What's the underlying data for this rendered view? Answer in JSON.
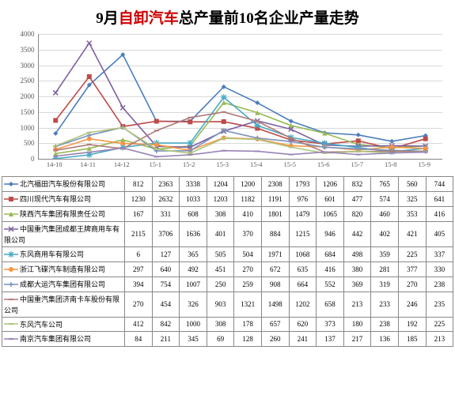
{
  "title_parts": {
    "prefix": "9月",
    "red": "自卸汽车",
    "suffix": "总产量前10名企业产量走势"
  },
  "chart": {
    "type": "line",
    "ylim": [
      0,
      4000
    ],
    "ytick_step": 500,
    "yticks": [
      0,
      500,
      1000,
      1500,
      2000,
      2500,
      3000,
      3500,
      4000
    ],
    "categories": [
      "14-10",
      "14-11",
      "14-12",
      "15-1",
      "15-2",
      "15-3",
      "15-4",
      "15-5",
      "15-6",
      "15-7",
      "15-8",
      "15-9"
    ],
    "grid_color": "#d9d9d9",
    "axis_color": "#868686",
    "background_color": "#ffffff"
  },
  "series": [
    {
      "name": "北汽福田汽车股份有限公司",
      "color": "#4a7ebb",
      "marker": "diamond",
      "values": [
        812,
        2363,
        3338,
        1204,
        1200,
        2308,
        1793,
        1206,
        832,
        765,
        560,
        744
      ]
    },
    {
      "name": "四川现代汽车有限公司",
      "color": "#be4b48",
      "marker": "square",
      "values": [
        1230,
        2632,
        1033,
        1203,
        1182,
        1191,
        976,
        601,
        477,
        574,
        325,
        641
      ]
    },
    {
      "name": "陕西汽车集团有限责任公司",
      "color": "#98b954",
      "marker": "triangle",
      "values": [
        167,
        331,
        608,
        308,
        410,
        1801,
        1479,
        1065,
        820,
        460,
        353,
        416
      ]
    },
    {
      "name": "中国重汽集团成都王牌商用车有限公司",
      "color": "#7d60a0",
      "marker": "x",
      "values": [
        2115,
        3706,
        1636,
        401,
        370,
        884,
        1215,
        946,
        442,
        402,
        421,
        405
      ]
    },
    {
      "name": "东风商用车有限公司",
      "color": "#46aac5",
      "marker": "star",
      "values": [
        6,
        127,
        365,
        505,
        504,
        1971,
        1068,
        684,
        498,
        359,
        225,
        337
      ]
    },
    {
      "name": "浙江飞碟汽车制造有限公司",
      "color": "#f79646",
      "marker": "circle",
      "values": [
        297,
        640,
        492,
        451,
        270,
        672,
        635,
        416,
        380,
        281,
        377,
        330
      ]
    },
    {
      "name": "成都大运汽车集团有限公司",
      "color": "#7993be",
      "marker": "plus",
      "values": [
        394,
        754,
        1007,
        250,
        259,
        908,
        664,
        552,
        369,
        319,
        270,
        238
      ]
    },
    {
      "name": "中国重汽集团济南卡车股份有限公司",
      "color": "#b07a78",
      "marker": "dash",
      "values": [
        270,
        454,
        326,
        903,
        1321,
        1498,
        1202,
        658,
        213,
        233,
        246,
        235
      ]
    },
    {
      "name": "东风汽车公司",
      "color": "#aec47b",
      "marker": "dash",
      "values": [
        412,
        842,
        1000,
        308,
        178,
        657,
        620,
        373,
        180,
        238,
        192,
        225
      ]
    },
    {
      "name": "南京汽车集团有限公司",
      "color": "#9983b5",
      "marker": "dash",
      "values": [
        84,
        211,
        345,
        69,
        128,
        260,
        241,
        137,
        217,
        136,
        185,
        213
      ]
    }
  ]
}
